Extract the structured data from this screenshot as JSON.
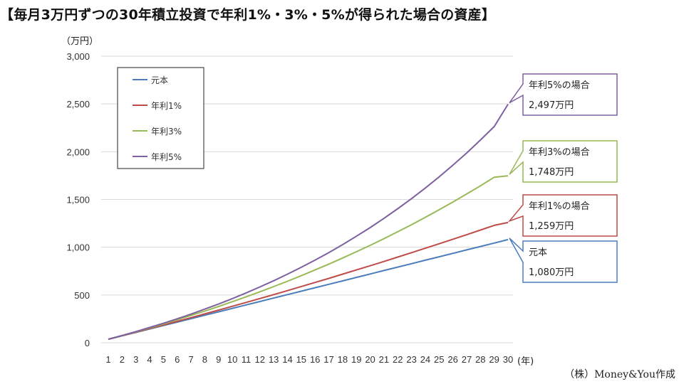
{
  "title": "【毎月3万円ずつの30年積立投資で年利1%・3%・5%が得られた場合の資産】",
  "credit": "（株）Money&You作成",
  "chart_data": {
    "type": "line",
    "y_unit_label": "（万円）",
    "x_unit_label": "(年)",
    "ylim": [
      0,
      3000
    ],
    "y_ticks": [
      0,
      500,
      1000,
      1500,
      2000,
      2500,
      3000
    ],
    "y_tick_labels": [
      "0",
      "500",
      "1,000",
      "1,500",
      "2,000",
      "2,500",
      "3,000"
    ],
    "grid": "horizontal",
    "legend_position": "top-left",
    "categories": [
      "1",
      "2",
      "3",
      "4",
      "5",
      "6",
      "7",
      "8",
      "9",
      "10",
      "11",
      "12",
      "13",
      "14",
      "15",
      "16",
      "17",
      "18",
      "19",
      "20",
      "21",
      "22",
      "23",
      "24",
      "25",
      "26",
      "27",
      "28",
      "29",
      "30"
    ],
    "series": [
      {
        "name": "元本",
        "color": "#4a7ebb",
        "values": [
          36,
          72,
          108,
          144,
          180,
          216,
          252,
          288,
          324,
          360,
          396,
          432,
          468,
          504,
          540,
          576,
          612,
          648,
          684,
          720,
          756,
          792,
          828,
          864,
          900,
          936,
          972,
          1008,
          1044,
          1080
        ]
      },
      {
        "name": "年利1%",
        "color": "#be4b48",
        "values": [
          36,
          73,
          110,
          148,
          186,
          224,
          263,
          302,
          342,
          382,
          422,
          463,
          504,
          546,
          589,
          631,
          674,
          718,
          762,
          806,
          851,
          897,
          943,
          989,
          1036,
          1084,
          1131,
          1180,
          1229,
          1259
        ]
      },
      {
        "name": "年利3%",
        "color": "#98b954",
        "values": [
          37,
          75,
          114,
          155,
          197,
          241,
          286,
          332,
          380,
          430,
          481,
          534,
          588,
          644,
          702,
          762,
          823,
          887,
          953,
          1020,
          1090,
          1162,
          1236,
          1313,
          1392,
          1473,
          1557,
          1643,
          1733,
          1748
        ]
      },
      {
        "name": "年利5%",
        "color": "#7d60a0",
        "values": [
          37,
          76,
          117,
          160,
          204,
          251,
          300,
          352,
          406,
          462,
          522,
          584,
          649,
          718,
          790,
          865,
          944,
          1027,
          1115,
          1206,
          1302,
          1403,
          1509,
          1620,
          1736,
          1859,
          1987,
          2122,
          2264,
          2497
        ]
      }
    ],
    "callouts": [
      {
        "series": "年利5%",
        "label": "年利5%の場合",
        "value": "2,497万円"
      },
      {
        "series": "年利3%",
        "label": "年利3%の場合",
        "value": "1,748万円"
      },
      {
        "series": "年利1%",
        "label": "年利1%の場合",
        "value": "1,259万円"
      },
      {
        "series": "元本",
        "label": "元本",
        "value": "1,080万円"
      }
    ]
  }
}
